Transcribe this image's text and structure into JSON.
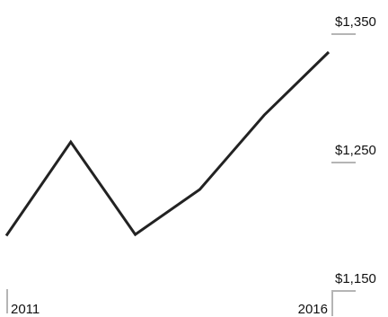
{
  "chart_data": {
    "type": "line",
    "title": "",
    "xlabel": "",
    "ylabel": "",
    "x": [
      2011,
      2012,
      2013,
      2014,
      2015,
      2016
    ],
    "series": [
      {
        "values": [
          1193,
          1266,
          1194,
          1229,
          1287,
          1336
        ]
      }
    ],
    "xlim": [
      2011,
      2016
    ],
    "ylim": [
      1150,
      1350
    ],
    "y_ticks": [
      1150,
      1250,
      1350
    ],
    "y_tick_labels": [
      "$1,150",
      "$1,250",
      "$1,350"
    ],
    "x_tick_labels": [
      "2011",
      "2016"
    ],
    "grid": false,
    "legend": "none",
    "colors": {
      "line": "#222222",
      "tick": "#b5b5b5",
      "text": "#111111"
    }
  }
}
